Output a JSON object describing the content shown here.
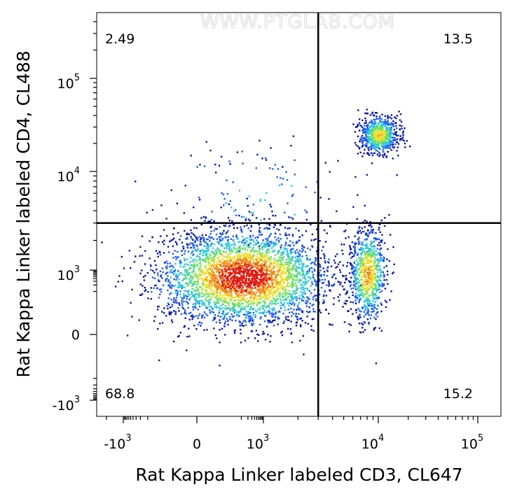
{
  "watermark": "WWW.PTGLAB.COM",
  "chart_data": {
    "type": "scatter",
    "subtype": "flow-cytometry-density-dot-plot",
    "title": "",
    "xlabel": "Rat Kappa Linker labeled CD3, CL647",
    "ylabel": "Rat Kappa Linker labeled CD4, CL488",
    "scale": "biexponential",
    "x_ticks": [
      {
        "base": "-10",
        "exp": "3",
        "value": -1000
      },
      {
        "base": "0",
        "exp": "",
        "value": 0
      },
      {
        "base": "10",
        "exp": "3",
        "value": 1000
      },
      {
        "base": "10",
        "exp": "4",
        "value": 10000
      },
      {
        "base": "10",
        "exp": "5",
        "value": 100000
      }
    ],
    "y_ticks": [
      {
        "base": "-10",
        "exp": "3",
        "value": -1000
      },
      {
        "base": "0",
        "exp": "",
        "value": 0
      },
      {
        "base": "10",
        "exp": "3",
        "value": 1000
      },
      {
        "base": "10",
        "exp": "4",
        "value": 10000
      },
      {
        "base": "10",
        "exp": "5",
        "value": 100000
      }
    ],
    "gate": {
      "x": 3000,
      "y": 3000
    },
    "quadrants": [
      {
        "position": "top-left",
        "label": "2.49",
        "percent": 2.49
      },
      {
        "position": "top-right",
        "label": "13.5",
        "percent": 13.5
      },
      {
        "position": "bottom-left",
        "label": "68.8",
        "percent": 68.8
      },
      {
        "position": "bottom-right",
        "label": "15.2",
        "percent": 15.2
      }
    ],
    "populations": [
      {
        "name": "",
        "x_center": 120,
        "y_center": 500,
        "spread_x": 0.55,
        "spread_y": 0.3,
        "weight": 68.8
      },
      {
        "name": "",
        "x_center": 8000,
        "y_center": 700,
        "spread_x": 0.12,
        "spread_y": 0.3,
        "weight": 15.2
      },
      {
        "name": "",
        "x_center": 10000,
        "y_center": 25000,
        "spread_x": 0.12,
        "spread_y": 0.12,
        "weight": 13.5
      },
      {
        "name": "",
        "x_center": 800,
        "y_center": 5000,
        "spread_x": 0.6,
        "spread_y": 0.4,
        "weight": 2.49
      }
    ],
    "density_colors": [
      "#0a12a8",
      "#1a5cff",
      "#2ec8d8",
      "#6ee06a",
      "#f0e030",
      "#f08a1a",
      "#e21a10"
    ]
  }
}
